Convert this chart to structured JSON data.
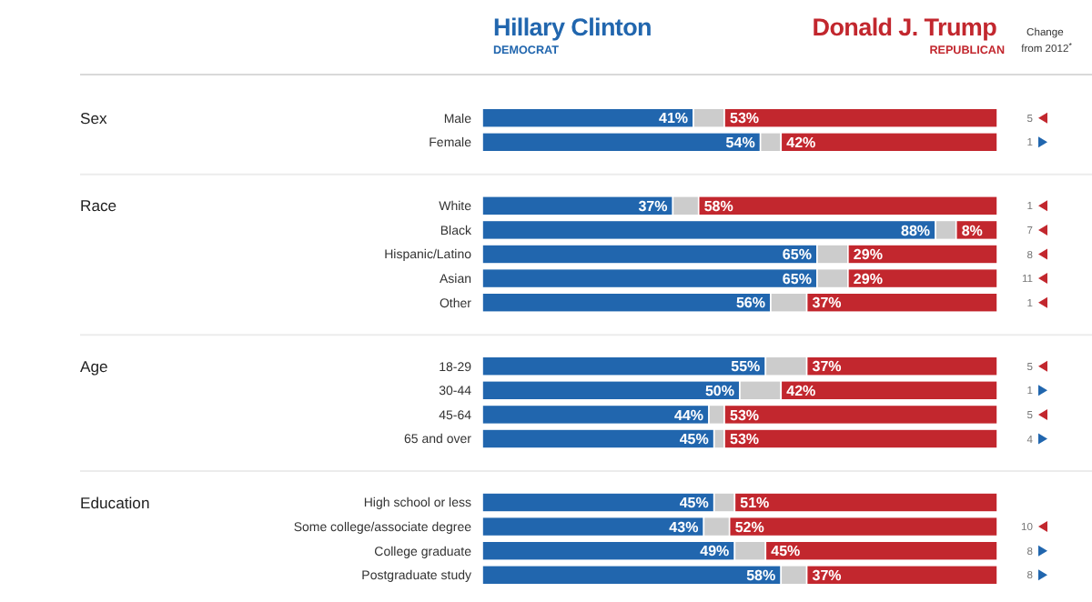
{
  "chart_data": [
    {
      "type": "bar",
      "orientation": "horizontal",
      "stacked": true,
      "ylabel": "Sex",
      "categories": [
        "Male",
        "Female"
      ],
      "xlim": [
        0,
        100
      ],
      "tick_labels": "y",
      "legend": "top",
      "series": [
        {
          "name": "Hillary Clinton\nDEMOCRAT",
          "color": "#2166ae",
          "values": [
            41,
            54
          ],
          "value_labels": [
            "41%",
            "54%"
          ]
        },
        {
          "color": "#cccccc",
          "values": [
            6,
            4
          ]
        },
        {
          "name": "Donald J. Trump\nREPUBLICAN",
          "color": "#c2272e",
          "values": [
            53,
            42
          ],
          "value_labels": [
            "53%",
            "42%"
          ]
        }
      ]
    },
    {
      "type": "bar",
      "orientation": "horizontal",
      "stacked": true,
      "ylabel": "Race",
      "categories": [
        "White",
        "Black",
        "Hispanic/Latino",
        "Asian",
        "Other"
      ],
      "xlim": [
        0,
        100
      ],
      "tick_labels": "y",
      "series": [
        {
          "color": "#2166ae",
          "values": [
            37,
            88,
            65,
            65,
            56
          ],
          "value_labels": [
            "37%",
            "88%",
            "65%",
            "65%",
            "56%"
          ]
        },
        {
          "color": "#cccccc",
          "values": [
            5,
            4,
            6,
            6,
            7
          ]
        },
        {
          "color": "#c2272e",
          "values": [
            58,
            8,
            29,
            29,
            37
          ],
          "value_labels": [
            "58%",
            "8%",
            "29%",
            "29%",
            "37%"
          ]
        }
      ]
    },
    {
      "type": "bar",
      "orientation": "horizontal",
      "stacked": true,
      "ylabel": "Age",
      "categories": [
        "18-29",
        "30-44",
        "45-64",
        "65 and over"
      ],
      "xlim": [
        0,
        100
      ],
      "tick_labels": "y",
      "series": [
        {
          "color": "#2166ae",
          "values": [
            55,
            50,
            44,
            45
          ],
          "value_labels": [
            "55%",
            "50%",
            "44%",
            "45%"
          ]
        },
        {
          "color": "#cccccc",
          "values": [
            8,
            8,
            3,
            2
          ]
        },
        {
          "color": "#c2272e",
          "values": [
            37,
            42,
            53,
            53
          ],
          "value_labels": [
            "37%",
            "42%",
            "53%",
            "53%"
          ]
        }
      ]
    },
    {
      "type": "bar",
      "orientation": "horizontal",
      "stacked": true,
      "ylabel": "Education",
      "categories": [
        "High school or less",
        "Some college/associate degree",
        "College graduate",
        "Postgraduate study"
      ],
      "xlim": [
        0,
        100
      ],
      "tick_labels": "y",
      "series": [
        {
          "color": "#2166ae",
          "values": [
            45,
            43,
            49,
            58
          ],
          "value_labels": [
            "45%",
            "43%",
            "49%",
            "58%"
          ]
        },
        {
          "color": "#cccccc",
          "values": [
            4,
            5,
            6,
            5
          ]
        },
        {
          "color": "#c2272e",
          "values": [
            51,
            52,
            45,
            37
          ],
          "value_labels": [
            "51%",
            "52%",
            "45%",
            "37%"
          ]
        }
      ]
    },
    {
      "type": "other",
      "title": "Change from 2012$^{*}$",
      "categories": [
        null,
        null,
        null,
        null,
        null,
        null,
        null,
        null,
        null,
        null,
        null,
        null,
        null,
        null,
        null
      ],
      "data_labels": true,
      "values": [
        5,
        1,
        1,
        7,
        8,
        11,
        1,
        5,
        1,
        5,
        4,
        null,
        10,
        8,
        8
      ],
      "colors": [
        "#c2272e",
        "#2166ae",
        "#c2272e",
        "#c2272e",
        "#c2272e",
        "#c2272e",
        "#c2272e",
        "#c2272e",
        "#2166ae",
        "#c2272e",
        "#2166ae",
        null,
        "#c2272e",
        "#2166ae",
        "#2166ae"
      ]
    }
  ]
}
